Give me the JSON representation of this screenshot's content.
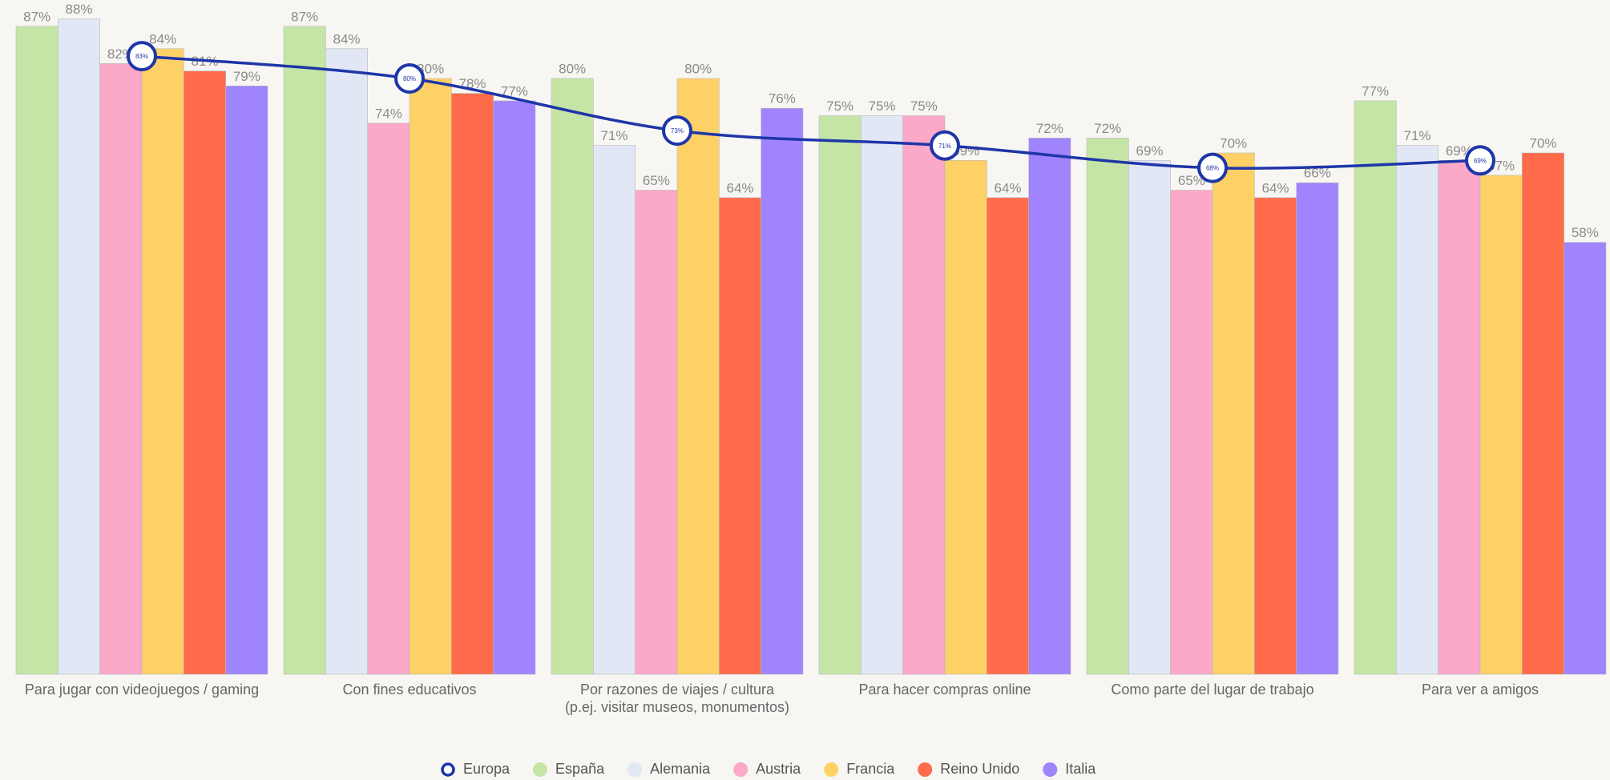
{
  "chart_data": {
    "type": "bar",
    "categories": [
      "Para jugar con videojuegos / gaming",
      "Con fines educativos",
      "Por razones de viajes / cultura\n(p.ej. visitar museos, monumentos)",
      "Para hacer compras online",
      "Como parte del lugar de trabajo",
      "Para ver a amigos"
    ],
    "ylim": [
      0,
      90
    ],
    "series": [
      {
        "name": "Europa",
        "type": "line",
        "color": "#1e36a8",
        "values": [
          83,
          80,
          73,
          71,
          68,
          69
        ],
        "value_labels": [
          "83%",
          "80%",
          "73%",
          "71%",
          "68%",
          "69%"
        ]
      },
      {
        "name": "España",
        "color": "#c4e5a6",
        "values": [
          87,
          87,
          80,
          75,
          72,
          77
        ],
        "value_labels": [
          "87%",
          "87%",
          "80%",
          "75%",
          "72%",
          "77%"
        ]
      },
      {
        "name": "Alemania",
        "color": "#e2e7f5",
        "values": [
          88,
          84,
          71,
          75,
          69,
          71
        ],
        "value_labels": [
          "88%",
          "84%",
          "71%",
          "75%",
          "69%",
          "71%"
        ]
      },
      {
        "name": "Austria",
        "color": "#fba8c9",
        "values": [
          82,
          74,
          65,
          75,
          65,
          69
        ],
        "value_labels": [
          "82%",
          "74%",
          "65%",
          "75%",
          "65%",
          "69%"
        ]
      },
      {
        "name": "Francia",
        "color": "#fed166",
        "values": [
          84,
          80,
          80,
          69,
          70,
          67
        ],
        "value_labels": [
          "84%",
          "80%",
          "80%",
          "69%",
          "70%",
          "67%"
        ]
      },
      {
        "name": "Reino Unido",
        "color": "#ff6b4b",
        "values": [
          81,
          78,
          64,
          64,
          64,
          70
        ],
        "value_labels": [
          "81%",
          "78%",
          "64%",
          "64%",
          "64%",
          "70%"
        ]
      },
      {
        "name": "Italia",
        "color": "#a084fd",
        "values": [
          79,
          77,
          76,
          72,
          66,
          58
        ],
        "value_labels": [
          "79%",
          "77%",
          "76%",
          "72%",
          "66%",
          "58%"
        ]
      }
    ]
  }
}
